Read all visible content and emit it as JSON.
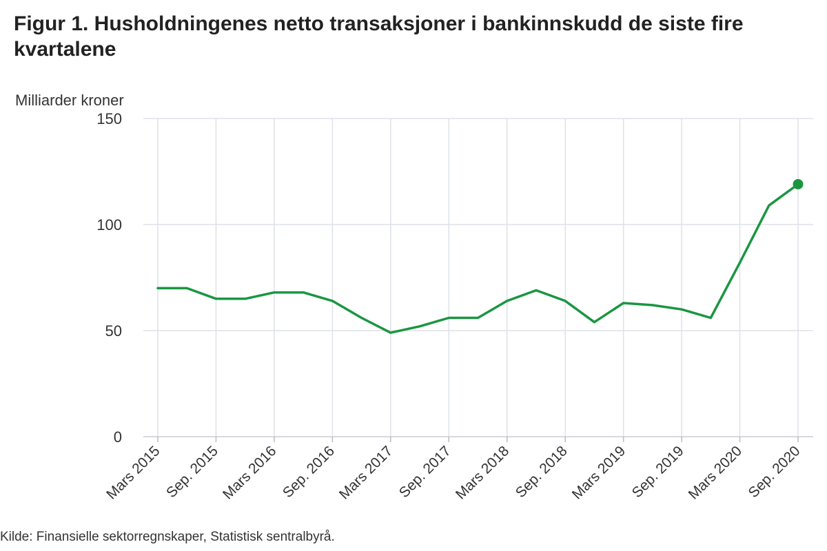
{
  "title": "Figur 1. Husholdningenes netto transaksjoner i bankinnskudd de siste fire kvartalene",
  "source": "Kilde: Finansielle sektorregnskaper, Statistisk sentralbyrå.",
  "chart_data": {
    "type": "line",
    "ylabel": "Milliarder kroner",
    "xlabel": "",
    "ylim": [
      0,
      150
    ],
    "yticks": [
      "0",
      "50",
      "100",
      "150"
    ],
    "grid": true,
    "color": "#1a9641",
    "x": [
      "Mars 2015",
      "Jun. 2015",
      "Sep. 2015",
      "Des. 2015",
      "Mars 2016",
      "Jun. 2016",
      "Sep. 2016",
      "Des. 2016",
      "Mars 2017",
      "Jun. 2017",
      "Sep. 2017",
      "Des. 2017",
      "Mars 2018",
      "Jun. 2018",
      "Sep. 2018",
      "Des. 2018",
      "Mars 2019",
      "Jun. 2019",
      "Sep. 2019",
      "Des. 2019",
      "Mars 2020",
      "Jun. 2020",
      "Sep. 2020"
    ],
    "xtick_labels": [
      "Mars 2015",
      "Sep. 2015",
      "Mars 2016",
      "Sep. 2016",
      "Mars 2017",
      "Sep. 2017",
      "Mars 2018",
      "Sep. 2018",
      "Mars 2019",
      "Sep. 2019",
      "Mars 2020",
      "Sep. 2020"
    ],
    "series": [
      {
        "values": [
          70,
          70,
          65,
          65,
          68,
          68,
          64,
          56,
          49,
          52,
          56,
          56,
          64,
          69,
          64,
          54,
          63,
          62,
          60,
          56,
          82,
          109,
          119
        ]
      }
    ]
  }
}
